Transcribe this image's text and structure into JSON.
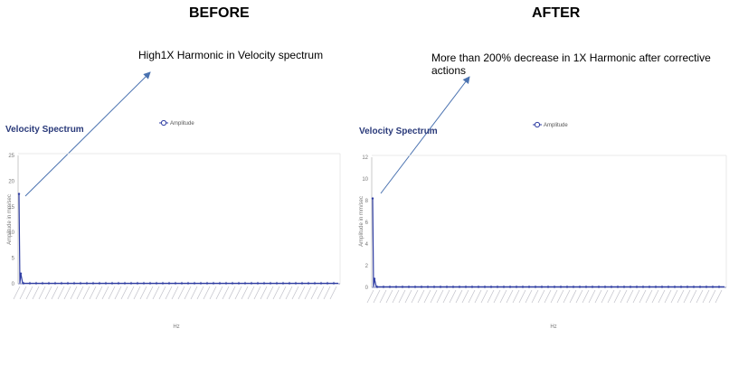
{
  "headings": {
    "before": "BEFORE",
    "after": "AFTER"
  },
  "annotations": {
    "before": "High1X Harmonic in Velocity spectrum",
    "after": "More than 200% decrease in 1X Harmonic after corrective actions"
  },
  "colors": {
    "series": "#2f3da3",
    "arrow": "#4a72b0",
    "title": "#2a3a7a"
  },
  "chart_data": [
    {
      "type": "line",
      "panel": "before",
      "title": "Velocity Spectrum",
      "legend": "Amplitude",
      "legend_position": "top",
      "xlabel": "Hz",
      "ylabel": "Amplitude in mm/sec",
      "ylim": [
        0,
        25
      ],
      "yticks": [
        0,
        5,
        10,
        15,
        20,
        25
      ],
      "grid": false,
      "series": [
        {
          "name": "Amplitude",
          "peaks": [
            {
              "x": 1,
              "y": 17.5
            },
            {
              "x": 2,
              "y": 2
            }
          ],
          "baseline": 0.1
        }
      ]
    },
    {
      "type": "line",
      "panel": "after",
      "title": "Velocity Spectrum",
      "legend": "Amplitude",
      "legend_position": "top",
      "xlabel": "Hz",
      "ylabel": "Amplitude in mm/sec",
      "ylim": [
        0,
        12
      ],
      "yticks": [
        0,
        2,
        4,
        6,
        8,
        10,
        12
      ],
      "grid": false,
      "series": [
        {
          "name": "Amplitude",
          "peaks": [
            {
              "x": 1,
              "y": 8.2
            },
            {
              "x": 2,
              "y": 0.8
            }
          ],
          "baseline": 0.05
        }
      ]
    }
  ]
}
